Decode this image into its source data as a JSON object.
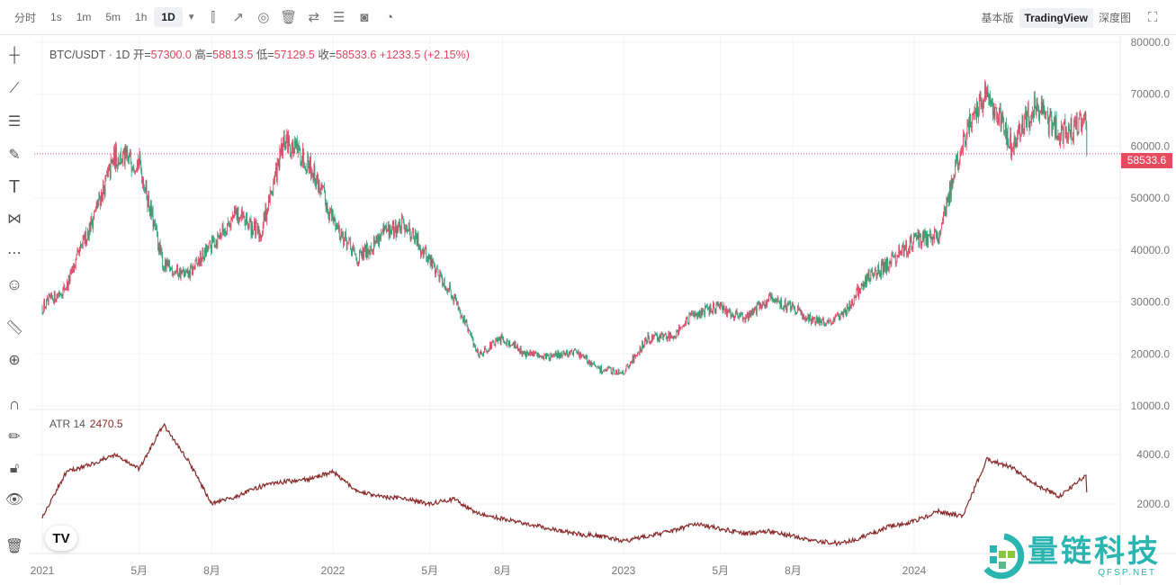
{
  "toolbar": {
    "timeframes": [
      "分时",
      "1s",
      "1m",
      "5m",
      "1h",
      "1D"
    ],
    "active": "1D",
    "dropdown_icon": "triangle-down-icon",
    "icons": [
      "candle-style-icon",
      "indicators-icon",
      "settings-icon",
      "trash-icon",
      "swap-icon",
      "list-icon",
      "camera-icon",
      "replay-icon"
    ]
  },
  "view_tabs": {
    "items": [
      "基本版",
      "TradingView",
      "深度图"
    ],
    "active": "TradingView",
    "fullscreen_icon": "fullscreen-icon"
  },
  "left_tools": [
    "crosshair-icon",
    "trend-line-icon",
    "horizontal-lines-icon",
    "brush-icon",
    "text-icon",
    "pattern-icon",
    "prediction-icon",
    "emoji-icon",
    "ruler-icon",
    "zoom-in-icon",
    "magnet-icon",
    "lock-drawing-icon",
    "unlock-icon",
    "eye-icon",
    "trash-icon"
  ],
  "legend": {
    "symbol": "BTC/USDT · 1D",
    "open_label": "开=",
    "open": "57300.0",
    "high_label": "高=",
    "high": "58813.5",
    "low_label": "低=",
    "low": "57129.5",
    "close_label": "收=",
    "close": "58533.6",
    "change": "+1233.5",
    "change_pct": "(+2.15%)"
  },
  "atr": {
    "label": "ATR 14",
    "value": "2470.5"
  },
  "last_price": "58533.6",
  "colors": {
    "up": "#e0455c",
    "down": "#26a17b",
    "atr": "#8b2a2a",
    "last_price": "#e84a5f"
  },
  "watermark": {
    "text": "量链科技",
    "sub": "QFSP.NET"
  },
  "tv_logo": "TV",
  "chart_data": [
    {
      "type": "candlestick",
      "title": "BTC/USDT 1D",
      "ylim": [
        10000,
        80000
      ],
      "yticks": [
        "80000.0",
        "70000.0",
        "60000.0",
        "50000.0",
        "40000.0",
        "30000.0",
        "20000.0",
        "10000.0"
      ],
      "xticks": [
        "2021",
        "5月",
        "8月",
        "2022",
        "5月",
        "8月",
        "2023",
        "5月",
        "8月",
        "2024"
      ],
      "monthly_close_approx": {
        "months": [
          "2021-01",
          "2021-02",
          "2021-03",
          "2021-04",
          "2021-05",
          "2021-06",
          "2021-07",
          "2021-08",
          "2021-09",
          "2021-10",
          "2021-11",
          "2021-12",
          "2022-01",
          "2022-02",
          "2022-03",
          "2022-04",
          "2022-05",
          "2022-06",
          "2022-07",
          "2022-08",
          "2022-09",
          "2022-10",
          "2022-11",
          "2022-12",
          "2023-01",
          "2023-02",
          "2023-03",
          "2023-04",
          "2023-05",
          "2023-06",
          "2023-07",
          "2023-08",
          "2023-09",
          "2023-10",
          "2023-11",
          "2023-12",
          "2024-01",
          "2024-02",
          "2024-03",
          "2024-04",
          "2024-05",
          "2024-06",
          "2024-07",
          "2024-08"
        ],
        "values": [
          33000,
          45000,
          58000,
          57000,
          37000,
          35000,
          41000,
          47000,
          43000,
          61000,
          57000,
          46000,
          38000,
          43000,
          45000,
          38000,
          31000,
          20000,
          23000,
          20000,
          19500,
          20500,
          17000,
          16500,
          23000,
          23500,
          28000,
          29000,
          27000,
          30500,
          29000,
          26000,
          27000,
          34500,
          37500,
          42000,
          42500,
          61000,
          71000,
          60000,
          67500,
          62500,
          64500,
          58533.6
        ]
      }
    },
    {
      "type": "line",
      "title": "ATR 14",
      "ylim": [
        0,
        5500
      ],
      "yticks": [
        "4000.0",
        "2000.0"
      ],
      "monthly_approx": [
        3300,
        3600,
        4000,
        3400,
        5200,
        3800,
        2000,
        2300,
        2700,
        2900,
        3000,
        3300,
        2500,
        2300,
        2200,
        2000,
        2200,
        1600,
        1400,
        1200,
        1000,
        800,
        700,
        500,
        700,
        900,
        1200,
        1000,
        800,
        900,
        700,
        500,
        400,
        700,
        1100,
        1300,
        1700,
        1500,
        3800,
        3500,
        2800,
        2300,
        3100,
        2470.5
      ]
    }
  ]
}
